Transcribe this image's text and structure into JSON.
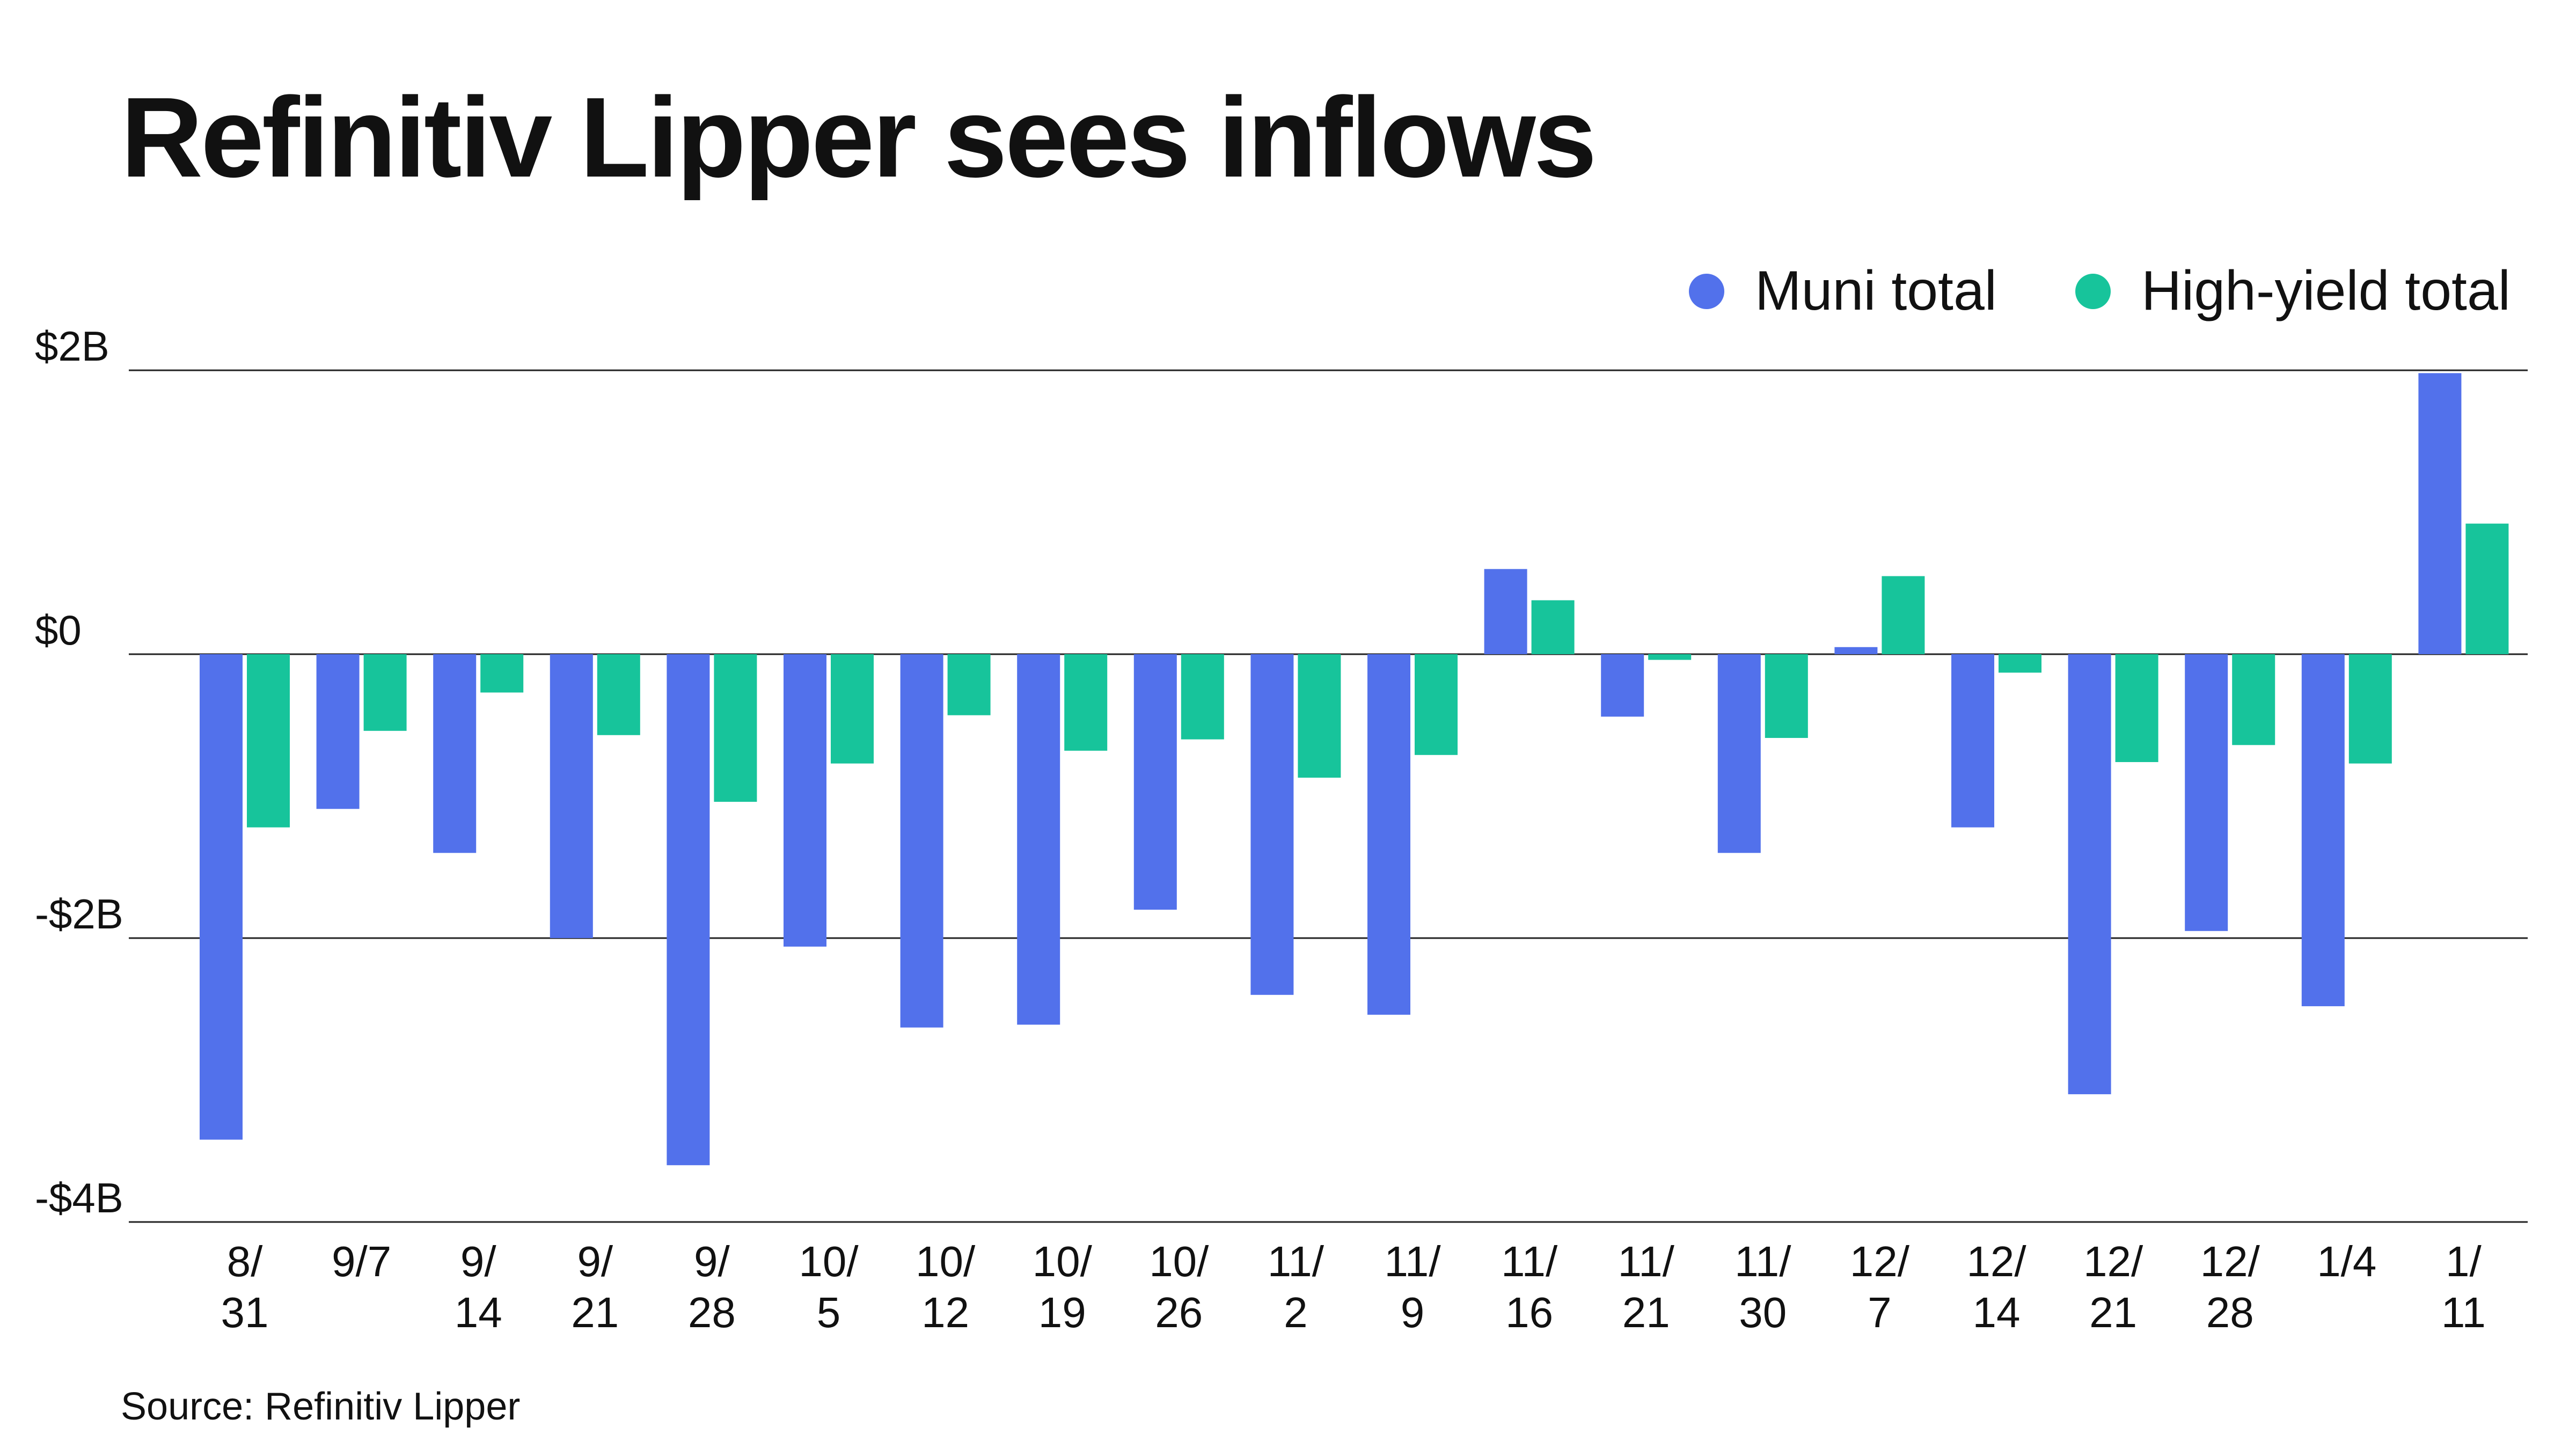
{
  "footer": {
    "source": "Source: Refinitiv Lipper"
  },
  "chart_data": {
    "type": "bar",
    "title": "Refinitiv Lipper sees inflows",
    "xlabel": "",
    "ylabel": "",
    "categories": [
      "8/\n31",
      "9/7",
      "9/\n14",
      "9/\n21",
      "9/\n28",
      "10/\n5",
      "10/\n12",
      "10/\n19",
      "10/\n26",
      "11/\n2",
      "11/\n9",
      "11/\n16",
      "11/\n21",
      "11/\n30",
      "12/\n7",
      "12/\n14",
      "12/\n21",
      "12/\n28",
      "1/4",
      "1/\n11"
    ],
    "series": [
      {
        "name": "Muni total",
        "color": "#5271eb",
        "values": [
          -3.42,
          -1.09,
          -1.4,
          -2.0,
          -3.6,
          -2.06,
          -2.63,
          -2.61,
          -1.8,
          -2.4,
          -2.54,
          0.6,
          -0.44,
          -1.4,
          0.05,
          -1.22,
          -3.1,
          -1.95,
          -2.48,
          1.98
        ]
      },
      {
        "name": "High-yield total",
        "color": "#17c49b",
        "values": [
          -1.22,
          -0.54,
          -0.27,
          -0.57,
          -1.04,
          -0.77,
          -0.43,
          -0.68,
          -0.6,
          -0.87,
          -0.71,
          0.38,
          -0.04,
          -0.59,
          0.55,
          -0.13,
          -0.76,
          -0.64,
          -0.77,
          0.92
        ]
      }
    ],
    "ylim": [
      -4,
      2
    ],
    "yticks": [
      {
        "value": 2,
        "label": "$2B"
      },
      {
        "value": 0,
        "label": "$0"
      },
      {
        "value": -2,
        "label": "-$2B"
      },
      {
        "value": -4,
        "label": "-$4B"
      }
    ],
    "grid": true,
    "legend": "top-right"
  }
}
